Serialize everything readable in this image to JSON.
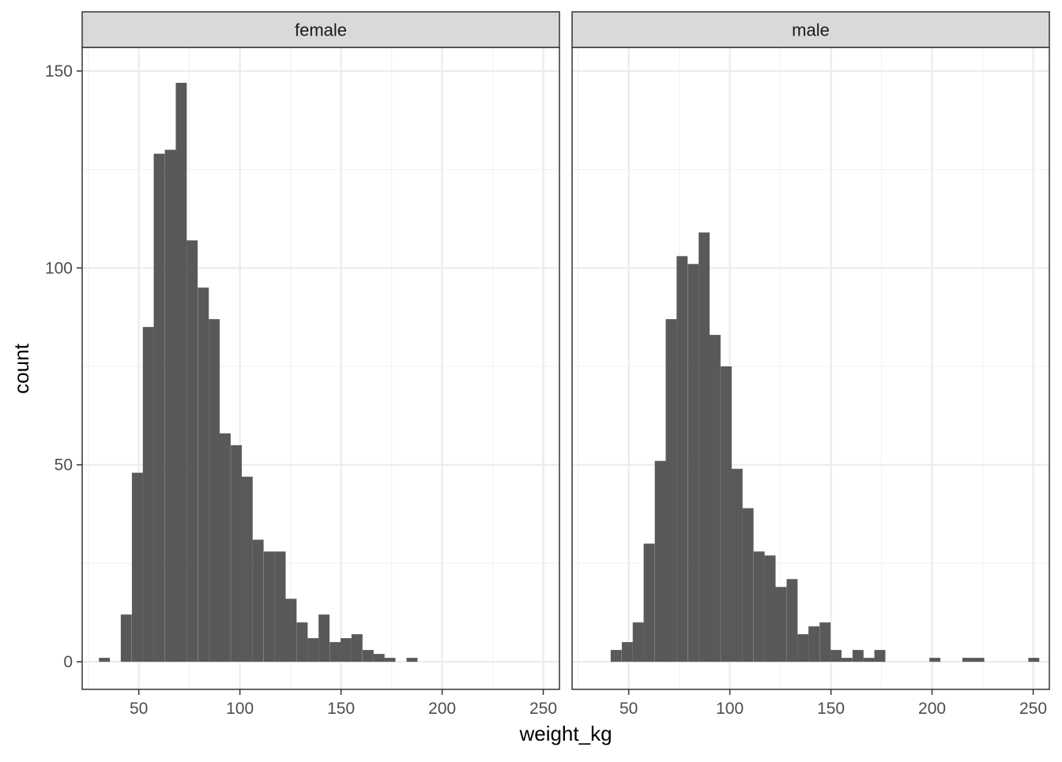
{
  "chart_data": {
    "type": "bar",
    "subtype": "faceted-histogram",
    "xlabel": "weight_kg",
    "ylabel": "count",
    "xlim": [
      22,
      258
    ],
    "ylim": [
      -7,
      156
    ],
    "x_ticks": [
      50,
      100,
      150,
      200,
      250
    ],
    "y_ticks": [
      0,
      50,
      100,
      150
    ],
    "grid": true,
    "colors": {
      "bar": "#595959",
      "strip_fill": "#d9d9d9",
      "grid_major": "#ebebeb",
      "grid_minor": "#f2f2f2",
      "panel_border": "#333333",
      "axis_text": "#4d4d4d"
    },
    "bin_width": 5.43,
    "facets": [
      {
        "label": "female",
        "bins": [
          {
            "x": 33.0,
            "count": 1
          },
          {
            "x": 38.4,
            "count": 0
          },
          {
            "x": 43.8,
            "count": 12
          },
          {
            "x": 49.3,
            "count": 48
          },
          {
            "x": 54.7,
            "count": 85
          },
          {
            "x": 60.1,
            "count": 129
          },
          {
            "x": 65.6,
            "count": 130
          },
          {
            "x": 71.0,
            "count": 147
          },
          {
            "x": 76.4,
            "count": 107
          },
          {
            "x": 81.9,
            "count": 95
          },
          {
            "x": 87.3,
            "count": 87
          },
          {
            "x": 92.7,
            "count": 58
          },
          {
            "x": 98.2,
            "count": 55
          },
          {
            "x": 103.6,
            "count": 47
          },
          {
            "x": 109.0,
            "count": 31
          },
          {
            "x": 114.5,
            "count": 28
          },
          {
            "x": 119.9,
            "count": 28
          },
          {
            "x": 125.3,
            "count": 16
          },
          {
            "x": 130.8,
            "count": 10
          },
          {
            "x": 136.2,
            "count": 6
          },
          {
            "x": 141.6,
            "count": 12
          },
          {
            "x": 147.1,
            "count": 5
          },
          {
            "x": 152.5,
            "count": 6
          },
          {
            "x": 157.9,
            "count": 7
          },
          {
            "x": 163.4,
            "count": 3
          },
          {
            "x": 168.8,
            "count": 2
          },
          {
            "x": 174.2,
            "count": 1
          },
          {
            "x": 179.7,
            "count": 0
          },
          {
            "x": 185.1,
            "count": 1
          }
        ]
      },
      {
        "label": "male",
        "bins": [
          {
            "x": 43.8,
            "count": 3
          },
          {
            "x": 49.3,
            "count": 5
          },
          {
            "x": 54.7,
            "count": 10
          },
          {
            "x": 60.1,
            "count": 30
          },
          {
            "x": 65.6,
            "count": 51
          },
          {
            "x": 71.0,
            "count": 87
          },
          {
            "x": 76.4,
            "count": 103
          },
          {
            "x": 81.9,
            "count": 101
          },
          {
            "x": 87.3,
            "count": 109
          },
          {
            "x": 92.7,
            "count": 83
          },
          {
            "x": 98.2,
            "count": 75
          },
          {
            "x": 103.6,
            "count": 49
          },
          {
            "x": 109.0,
            "count": 39
          },
          {
            "x": 114.5,
            "count": 28
          },
          {
            "x": 119.9,
            "count": 27
          },
          {
            "x": 125.3,
            "count": 19
          },
          {
            "x": 130.8,
            "count": 21
          },
          {
            "x": 136.2,
            "count": 7
          },
          {
            "x": 141.6,
            "count": 9
          },
          {
            "x": 147.1,
            "count": 10
          },
          {
            "x": 152.5,
            "count": 3
          },
          {
            "x": 157.9,
            "count": 1
          },
          {
            "x": 163.4,
            "count": 3
          },
          {
            "x": 168.8,
            "count": 1
          },
          {
            "x": 174.2,
            "count": 3
          },
          {
            "x": 201.4,
            "count": 1
          },
          {
            "x": 217.7,
            "count": 1
          },
          {
            "x": 223.1,
            "count": 1
          },
          {
            "x": 250.3,
            "count": 1
          }
        ]
      }
    ]
  }
}
